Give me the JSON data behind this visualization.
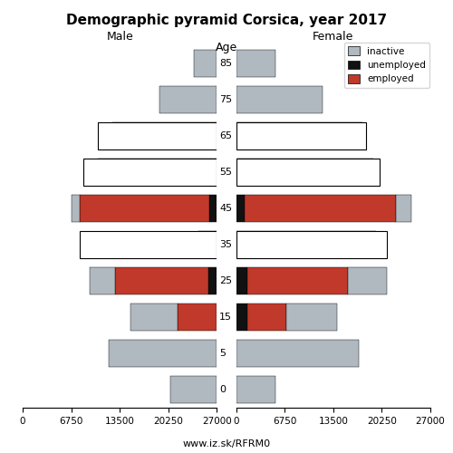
{
  "title": "Demographic pyramid Corsica, year 2017",
  "age_labels": [
    "0",
    "5",
    "15",
    "25",
    "35",
    "45",
    "55",
    "65",
    "75",
    "85"
  ],
  "age_y": [
    0,
    1,
    2,
    3,
    4,
    5,
    6,
    7,
    8,
    9
  ],
  "male": {
    "inactive": [
      6500,
      15000,
      6500,
      3500,
      2500,
      1200,
      16500,
      14500,
      8000,
      3200
    ],
    "unemployed": [
      0,
      0,
      0,
      1200,
      0,
      1000,
      0,
      0,
      0,
      0
    ],
    "employed": [
      0,
      0,
      5500,
      13000,
      0,
      18000,
      0,
      0,
      0,
      0
    ]
  },
  "female": {
    "inactive": [
      5500,
      17000,
      7000,
      5500,
      19500,
      2200,
      19000,
      17500,
      12000,
      5500
    ],
    "unemployed": [
      0,
      0,
      1500,
      1500,
      0,
      1200,
      0,
      0,
      0,
      0
    ],
    "employed": [
      0,
      0,
      5500,
      14000,
      0,
      21000,
      0,
      0,
      0,
      0
    ]
  },
  "outline_male": {
    "4": 19000,
    "6": 18500,
    "7": 16500
  },
  "outline_female": {
    "4": 21000,
    "6": 20000,
    "7": 18000
  },
  "colors": {
    "inactive": "#b0b8c0",
    "unemployed": "#111111",
    "employed": "#c0392b"
  },
  "xlim": 27000,
  "xticks": [
    0,
    6750,
    13500,
    20250,
    27000
  ],
  "background_color": "#ffffff",
  "footer": "www.iz.sk/RFRM0"
}
